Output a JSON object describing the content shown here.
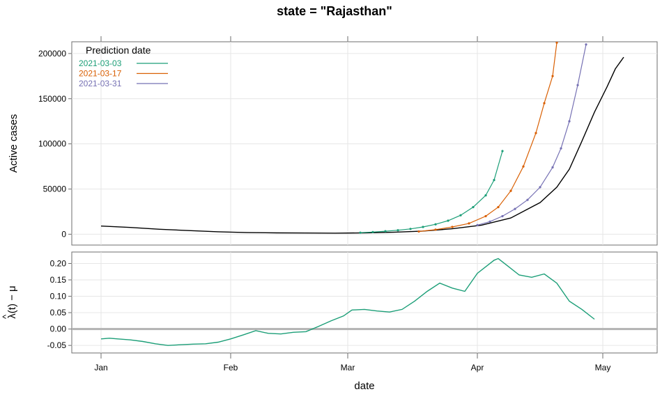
{
  "chart_data": {
    "title": "state = \"Rajasthan\"",
    "xlabel": "date",
    "x_ticks": [
      "Jan",
      "Feb",
      "Mar",
      "Apr",
      "May"
    ],
    "x_tick_dates": [
      "2021-01-01",
      "2021-02-01",
      "2021-03-01",
      "2021-04-01",
      "2021-05-01"
    ],
    "xlim": [
      "2020-12-25",
      "2021-05-14"
    ],
    "panels": [
      {
        "type": "line",
        "ylabel": "Active cases",
        "ylim": [
          -12000,
          213000
        ],
        "y_ticks": [
          0,
          50000,
          100000,
          150000,
          200000
        ],
        "grid": true,
        "legend": {
          "title": "Prediction date",
          "position": "top-left",
          "entries": [
            {
              "label": "2021-03-03",
              "color": "#1b9e77"
            },
            {
              "label": "2021-03-17",
              "color": "#d95f02"
            },
            {
              "label": "2021-03-31",
              "color": "#7570b3"
            }
          ]
        },
        "series": [
          {
            "name": "",
            "color": "#000000",
            "markers": false,
            "x": [
              "2021-01-01",
              "2021-01-08",
              "2021-01-15",
              "2021-01-22",
              "2021-01-29",
              "2021-02-05",
              "2021-02-12",
              "2021-02-19",
              "2021-02-26",
              "2021-03-05",
              "2021-03-12",
              "2021-03-19",
              "2021-03-26",
              "2021-04-02",
              "2021-04-09",
              "2021-04-16",
              "2021-04-20",
              "2021-04-23",
              "2021-04-26",
              "2021-04-29",
              "2021-05-02",
              "2021-05-04",
              "2021-05-06"
            ],
            "y": [
              9000,
              7500,
              5500,
              4000,
              2700,
              1800,
              1500,
              1300,
              1200,
              1500,
              2200,
              3500,
              6000,
              10000,
              18000,
              35000,
              52000,
              72000,
              103000,
              135000,
              163000,
              183000,
              196000
            ]
          },
          {
            "name": "2021-03-03",
            "color": "#1b9e77",
            "markers": true,
            "x": [
              "2021-03-04",
              "2021-03-07",
              "2021-03-10",
              "2021-03-13",
              "2021-03-16",
              "2021-03-19",
              "2021-03-22",
              "2021-03-25",
              "2021-03-28",
              "2021-03-31",
              "2021-04-03",
              "2021-04-05",
              "2021-04-07"
            ],
            "y": [
              1700,
              2400,
              3300,
              4400,
              5900,
              8000,
              11000,
              15000,
              21000,
              30000,
              43000,
              60000,
              92000
            ]
          },
          {
            "name": "2021-03-17",
            "color": "#d95f02",
            "markers": true,
            "x": [
              "2021-03-18",
              "2021-03-22",
              "2021-03-26",
              "2021-03-30",
              "2021-04-03",
              "2021-04-06",
              "2021-04-09",
              "2021-04-12",
              "2021-04-15",
              "2021-04-17",
              "2021-04-19",
              "2021-04-20"
            ],
            "y": [
              3000,
              5000,
              8000,
              12000,
              20000,
              30000,
              48000,
              75000,
              112000,
              145000,
              175000,
              212000
            ]
          },
          {
            "name": "2021-03-31",
            "color": "#7570b3",
            "markers": true,
            "x": [
              "2021-04-01",
              "2021-04-04",
              "2021-04-07",
              "2021-04-10",
              "2021-04-13",
              "2021-04-16",
              "2021-04-19",
              "2021-04-21",
              "2021-04-23",
              "2021-04-25",
              "2021-04-27"
            ],
            "y": [
              10000,
              14000,
              20000,
              28000,
              38000,
              52000,
              74000,
              95000,
              125000,
              165000,
              210000
            ]
          }
        ]
      },
      {
        "type": "line",
        "ylabel": "λ(t) − μ",
        "ylabel_hat": "^",
        "ylim": [
          -0.073,
          0.235
        ],
        "y_ticks": [
          -0.05,
          0.0,
          0.05,
          0.1,
          0.15,
          0.2
        ],
        "y_tick_labels": [
          "-0.05",
          "0.00",
          "0.05",
          "0.10",
          "0.15",
          "0.20"
        ],
        "grid": true,
        "reference_line": 0,
        "series": [
          {
            "name": "",
            "color": "#1b9e77",
            "markers": false,
            "x": [
              "2021-01-01",
              "2021-01-03",
              "2021-01-05",
              "2021-01-08",
              "2021-01-11",
              "2021-01-14",
              "2021-01-17",
              "2021-01-20",
              "2021-01-23",
              "2021-01-26",
              "2021-01-29",
              "2021-02-01",
              "2021-02-04",
              "2021-02-07",
              "2021-02-10",
              "2021-02-13",
              "2021-02-16",
              "2021-02-19",
              "2021-02-22",
              "2021-02-25",
              "2021-02-28",
              "2021-03-02",
              "2021-03-05",
              "2021-03-08",
              "2021-03-11",
              "2021-03-14",
              "2021-03-17",
              "2021-03-20",
              "2021-03-23",
              "2021-03-26",
              "2021-03-29",
              "2021-04-01",
              "2021-04-03",
              "2021-04-05",
              "2021-04-06",
              "2021-04-08",
              "2021-04-11",
              "2021-04-14",
              "2021-04-17",
              "2021-04-20",
              "2021-04-23",
              "2021-04-26",
              "2021-04-29"
            ],
            "y": [
              -0.03,
              -0.028,
              -0.03,
              -0.033,
              -0.038,
              -0.045,
              -0.05,
              -0.048,
              -0.046,
              -0.045,
              -0.04,
              -0.03,
              -0.018,
              -0.005,
              -0.013,
              -0.015,
              -0.01,
              -0.008,
              0.008,
              0.025,
              0.04,
              0.058,
              0.06,
              0.055,
              0.052,
              0.06,
              0.085,
              0.115,
              0.14,
              0.125,
              0.115,
              0.17,
              0.19,
              0.21,
              0.215,
              0.195,
              0.165,
              0.158,
              0.168,
              0.14,
              0.085,
              0.06,
              0.03
            ]
          }
        ]
      }
    ]
  }
}
